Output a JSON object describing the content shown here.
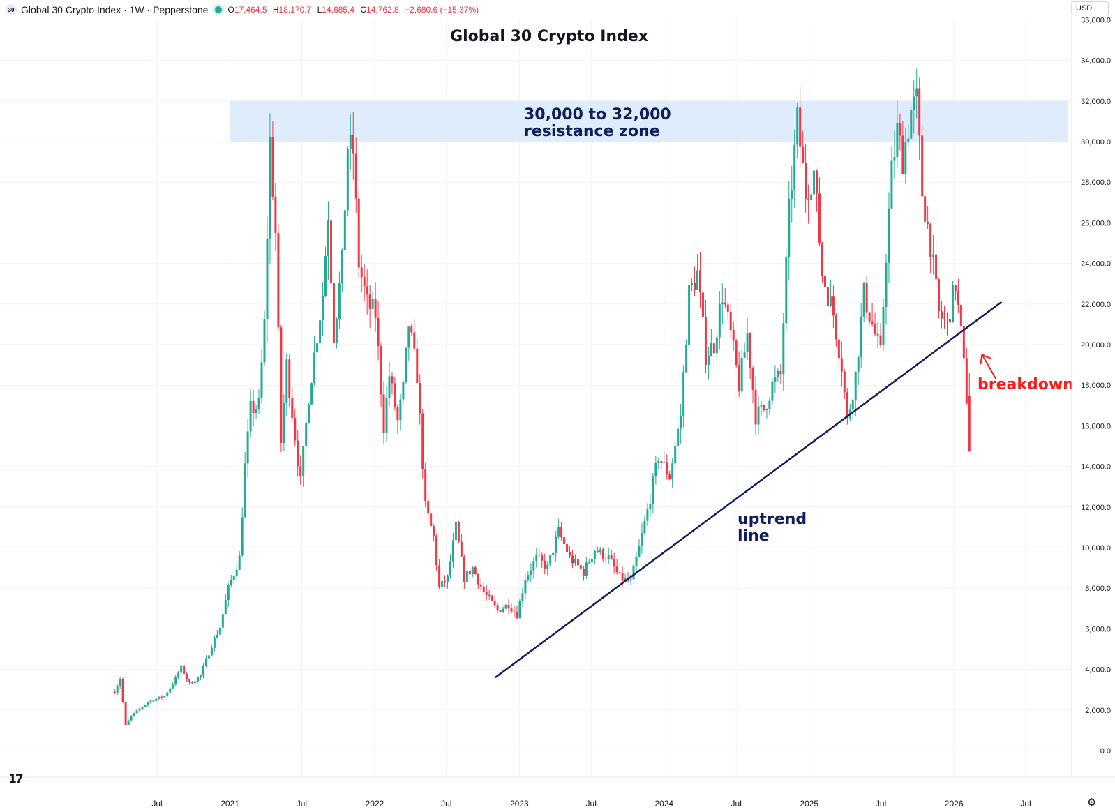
{
  "header": {
    "symbol_badge": "30",
    "instrument": "Global 30 Crypto Index · 1W · Pepperstone",
    "ohlc": [
      {
        "k": "O",
        "v": "17,464.5"
      },
      {
        "k": "H",
        "v": "18,170.7"
      },
      {
        "k": "L",
        "v": "14,685.4"
      },
      {
        "k": "C",
        "v": "14,762.8"
      },
      {
        "k": "",
        "v": "−2,680.6 (−15.37%)"
      }
    ],
    "currency": "USD"
  },
  "chart_data": {
    "type": "candlestick",
    "title": "Global 30 Crypto Index",
    "interval": "1W",
    "ylim": [
      0,
      36000
    ],
    "y_ticks": [
      "0.0",
      "2,000.0",
      "4,000.0",
      "6,000.0",
      "8,000.0",
      "10,000.0",
      "12,000.0",
      "14,000.0",
      "16,000.0",
      "18,000.0",
      "20,000.0",
      "22,000.0",
      "24,000.0",
      "26,000.0",
      "28,000.0",
      "30,000.0",
      "32,000.0",
      "34,000.0",
      "36,000.0"
    ],
    "x_ticks": [
      {
        "label": "Jul",
        "date": "2020-07-01"
      },
      {
        "label": "2021",
        "date": "2021-01-01"
      },
      {
        "label": "Jul",
        "date": "2021-07-01"
      },
      {
        "label": "2022",
        "date": "2022-01-01"
      },
      {
        "label": "Jul",
        "date": "2022-07-01"
      },
      {
        "label": "2023",
        "date": "2023-01-01"
      },
      {
        "label": "Jul",
        "date": "2023-07-01"
      },
      {
        "label": "2024",
        "date": "2024-01-01"
      },
      {
        "label": "Jul",
        "date": "2024-07-01"
      },
      {
        "label": "2025",
        "date": "2025-01-01"
      },
      {
        "label": "Jul",
        "date": "2025-07-01"
      },
      {
        "label": "2026",
        "date": "2026-01-01"
      },
      {
        "label": "Jul",
        "date": "2026-07-01"
      }
    ],
    "colors": {
      "up": "#22ab94",
      "down": "#f23645",
      "trendline": "#0f1e5a",
      "zone": "#dbeafc",
      "annotation_red": "#ff1a1a",
      "annotation_blue": "#0f1e5a"
    },
    "start_date": "2020-03-16",
    "end_date": "2026-02-09",
    "price_path": [
      [
        "2020-03-16",
        2900
      ],
      [
        "2020-03-30",
        3550
      ],
      [
        "2020-04-13",
        1250
      ],
      [
        "2020-04-27",
        1700
      ],
      [
        "2020-06-08",
        2400
      ],
      [
        "2020-07-20",
        2700
      ],
      [
        "2020-08-10",
        3300
      ],
      [
        "2020-08-31",
        4100
      ],
      [
        "2020-09-21",
        3300
      ],
      [
        "2020-10-19",
        3700
      ],
      [
        "2020-11-16",
        5200
      ],
      [
        "2020-12-07",
        6100
      ],
      [
        "2020-12-28",
        8000
      ],
      [
        "2021-01-25",
        9500
      ],
      [
        "2021-02-08",
        14000
      ],
      [
        "2021-02-22",
        16800
      ],
      [
        "2021-03-15",
        17000
      ],
      [
        "2021-03-29",
        21000
      ],
      [
        "2021-04-12",
        30000
      ],
      [
        "2021-04-26",
        25500
      ],
      [
        "2021-05-10",
        15200
      ],
      [
        "2021-05-24",
        19000
      ],
      [
        "2021-06-14",
        15500
      ],
      [
        "2021-06-28",
        13200
      ],
      [
        "2021-07-19",
        17500
      ],
      [
        "2021-08-09",
        20500
      ],
      [
        "2021-08-23",
        22500
      ],
      [
        "2021-09-06",
        26500
      ],
      [
        "2021-09-20",
        20500
      ],
      [
        "2021-10-11",
        24000
      ],
      [
        "2021-10-25",
        29800
      ],
      [
        "2021-11-08",
        29500
      ],
      [
        "2021-11-22",
        24000
      ],
      [
        "2021-12-13",
        22000
      ],
      [
        "2022-01-03",
        21500
      ],
      [
        "2022-01-24",
        16000
      ],
      [
        "2022-02-07",
        18500
      ],
      [
        "2022-02-28",
        16200
      ],
      [
        "2022-03-14",
        17800
      ],
      [
        "2022-03-28",
        21000
      ],
      [
        "2022-04-18",
        18500
      ],
      [
        "2022-05-09",
        12000
      ],
      [
        "2022-05-30",
        10500
      ],
      [
        "2022-06-13",
        8000
      ],
      [
        "2022-07-04",
        8500
      ],
      [
        "2022-07-25",
        11000
      ],
      [
        "2022-08-15",
        8500
      ],
      [
        "2022-09-05",
        9000
      ],
      [
        "2022-10-03",
        7800
      ],
      [
        "2022-11-07",
        6900
      ],
      [
        "2022-12-05",
        7200
      ],
      [
        "2022-12-26",
        6700
      ],
      [
        "2023-01-16",
        8500
      ],
      [
        "2023-02-13",
        9500
      ],
      [
        "2023-03-13",
        9000
      ],
      [
        "2023-04-10",
        10800
      ],
      [
        "2023-05-08",
        9500
      ],
      [
        "2023-06-12",
        8800
      ],
      [
        "2023-07-10",
        9900
      ],
      [
        "2023-08-14",
        9500
      ],
      [
        "2023-09-11",
        8500
      ],
      [
        "2023-10-09",
        8300
      ],
      [
        "2023-10-30",
        10000
      ],
      [
        "2023-11-20",
        11800
      ],
      [
        "2023-12-18",
        14500
      ],
      [
        "2024-01-15",
        13500
      ],
      [
        "2024-02-12",
        16500
      ],
      [
        "2024-03-04",
        22500
      ],
      [
        "2024-03-25",
        23500
      ],
      [
        "2024-04-15",
        19500
      ],
      [
        "2024-05-06",
        20000
      ],
      [
        "2024-05-27",
        22500
      ],
      [
        "2024-06-17",
        20500
      ],
      [
        "2024-07-08",
        18000
      ],
      [
        "2024-07-29",
        20500
      ],
      [
        "2024-08-19",
        16500
      ],
      [
        "2024-09-09",
        16800
      ],
      [
        "2024-09-30",
        18000
      ],
      [
        "2024-10-21",
        18500
      ],
      [
        "2024-11-11",
        26500
      ],
      [
        "2024-12-02",
        31000
      ],
      [
        "2024-12-23",
        27500
      ],
      [
        "2025-01-13",
        28500
      ],
      [
        "2025-02-03",
        23500
      ],
      [
        "2025-03-03",
        21500
      ],
      [
        "2025-03-24",
        19000
      ],
      [
        "2025-04-07",
        16200
      ],
      [
        "2025-04-28",
        18500
      ],
      [
        "2025-05-19",
        22500
      ],
      [
        "2025-06-09",
        21000
      ],
      [
        "2025-06-30",
        19500
      ],
      [
        "2025-07-14",
        24500
      ],
      [
        "2025-07-28",
        28500
      ],
      [
        "2025-08-11",
        30500
      ],
      [
        "2025-08-25",
        29200
      ],
      [
        "2025-09-15",
        31500
      ],
      [
        "2025-09-29",
        32000
      ],
      [
        "2025-10-13",
        27500
      ],
      [
        "2025-11-03",
        25000
      ],
      [
        "2025-11-24",
        21500
      ],
      [
        "2025-12-15",
        21000
      ],
      [
        "2026-01-05",
        23000
      ],
      [
        "2026-01-19",
        20500
      ],
      [
        "2026-02-02",
        17400
      ],
      [
        "2026-02-09",
        14762
      ]
    ],
    "annotations": {
      "zone": {
        "from": 30000,
        "to": 32000,
        "start_date": "2021-01-01",
        "label_line1": "30,000 to 32,000",
        "label_line2": "resistance zone"
      },
      "trendline": {
        "start": [
          "2022-11-01",
          3600
        ],
        "end": [
          "2026-05-01",
          22100
        ],
        "label_line1": "uptrend",
        "label_line2": "line"
      },
      "breakdown": {
        "label": "breakdown",
        "point": [
          "2026-01-19",
          20200
        ]
      }
    }
  }
}
